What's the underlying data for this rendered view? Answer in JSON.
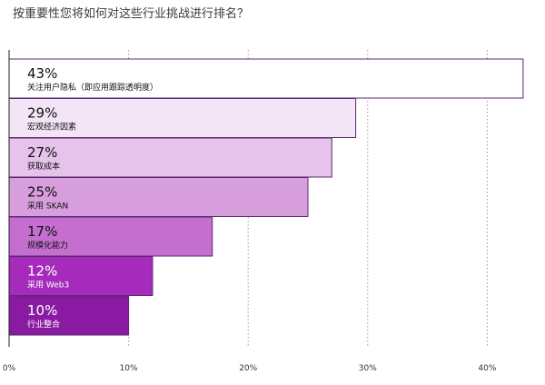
{
  "chart_data": {
    "type": "bar",
    "orientation": "horizontal",
    "title": "按重要性您将如何对这些行业挑战进行排名？",
    "categories": [
      "关注用户隐私（即应用跟踪透明度）",
      "宏观经济因素",
      "获取成本",
      "采用 SKAN",
      "规模化能力",
      "采用 Web3",
      "行业整合"
    ],
    "values": [
      43,
      29,
      27,
      25,
      17,
      12,
      10
    ],
    "value_labels": [
      "43%",
      "29%",
      "27%",
      "25%",
      "17%",
      "12%",
      "10%"
    ],
    "bar_colors": [
      "#ffffff",
      "#f3e4f6",
      "#e5c3ea",
      "#d79ede",
      "#c46fd0",
      "#a62bbd",
      "#8a1aa2"
    ],
    "text_colors": [
      "#111111",
      "#111111",
      "#111111",
      "#111111",
      "#111111",
      "#ffffff",
      "#ffffff"
    ],
    "bar_border_color": "#5a2a6e",
    "x_ticks": [
      0,
      10,
      20,
      30,
      40
    ],
    "x_tick_labels": [
      "0%",
      "10%",
      "20%",
      "30%",
      "40%"
    ],
    "xlim": [
      0,
      43
    ],
    "grid": true,
    "grid_style": "dotted vertical",
    "legend": "none"
  }
}
